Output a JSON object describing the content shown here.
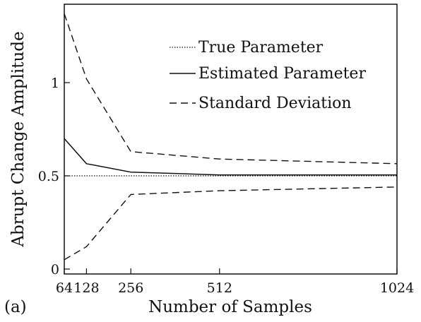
{
  "panel_label": "(a)",
  "chart_data": {
    "type": "line",
    "title": "",
    "xlabel": "Number of Samples",
    "ylabel": "Abrupt Change Amplitude",
    "xlim": [
      64,
      1024
    ],
    "ylim": [
      0,
      1.4
    ],
    "xticks": [
      64,
      128,
      256,
      512,
      1024
    ],
    "xtick_labels": [
      "64",
      "128",
      "256",
      "512",
      "1024"
    ],
    "yticks": [
      0,
      0.5,
      1
    ],
    "ytick_labels": [
      "0",
      "0.5",
      "1"
    ],
    "grid": false,
    "legend_position": "top-right",
    "series": [
      {
        "name": "True Parameter",
        "style": "dotted",
        "x": [
          64,
          1024
        ],
        "y": [
          0.5,
          0.5
        ]
      },
      {
        "name": "Estimated Parameter",
        "style": "solid",
        "x": [
          64,
          128,
          256,
          512,
          1024
        ],
        "y": [
          0.7,
          0.565,
          0.52,
          0.505,
          0.505
        ]
      },
      {
        "name": "Standard Deviation",
        "style": "dashed",
        "x": [
          64,
          128,
          256,
          512,
          1024
        ],
        "y": [
          1.37,
          1.02,
          0.63,
          0.59,
          0.565
        ]
      },
      {
        "name": "",
        "style": "dashed",
        "x": [
          64,
          128,
          256,
          512,
          1024
        ],
        "y": [
          0.05,
          0.12,
          0.4,
          0.42,
          0.44
        ]
      }
    ]
  }
}
